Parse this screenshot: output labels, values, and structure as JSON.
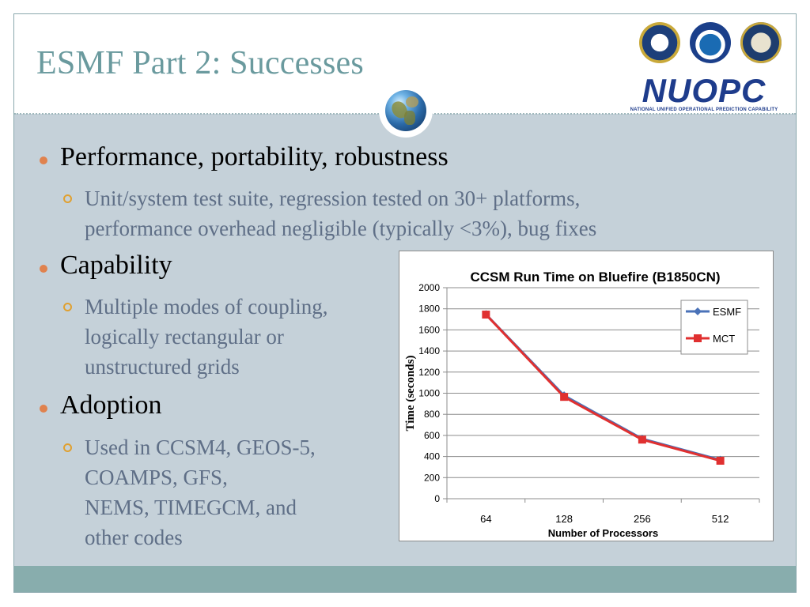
{
  "slide": {
    "title": "ESMF Part 2: Successes",
    "logo": {
      "brand": "NUOPC",
      "tagline": "NATIONAL UNIFIED OPERATIONAL PREDICTION CAPABILITY",
      "seals": [
        "air-force-seal",
        "noaa-seal",
        "navy-seal"
      ]
    },
    "bullets": [
      {
        "text": "Performance, portability, robustness",
        "sub": [
          "Unit/system test suite, regression tested on 30+ platforms,",
          "performance overhead negligible (typically <3%), bug fixes"
        ]
      },
      {
        "text": "Capability",
        "sub": [
          "Multiple modes of coupling,",
          "logically rectangular or",
          "unstructured grids"
        ]
      },
      {
        "text": "Adoption",
        "sub": [
          "Used in CCSM4, GEOS-5,",
          "COAMPS, GFS,",
          "NEMS, TIMEGCM, and",
          "other codes"
        ]
      }
    ],
    "colors": {
      "title": "#6a9a9e",
      "body_bg": "#c5d1d9",
      "footer": "#88adad",
      "bullet_dot": "#e0824e",
      "sub_text": "#5f6f87"
    }
  },
  "chart_data": {
    "type": "line",
    "title": "CCSM Run Time on Bluefire (B1850CN)",
    "xlabel": "Number of Processors",
    "ylabel": "Time (seconds)",
    "categories": [
      "64",
      "128",
      "256",
      "512"
    ],
    "ylim": [
      0,
      2000
    ],
    "yticks": [
      0,
      200,
      400,
      600,
      800,
      1000,
      1200,
      1400,
      1600,
      1800,
      2000
    ],
    "grid": true,
    "legend": "top-right",
    "series": [
      {
        "name": "ESMF",
        "values": [
          1750,
          980,
          570,
          370
        ],
        "color": "#4a72b8",
        "marker": "diamond"
      },
      {
        "name": "MCT",
        "values": [
          1745,
          965,
          560,
          360
        ],
        "color": "#e03030",
        "marker": "square"
      }
    ]
  }
}
